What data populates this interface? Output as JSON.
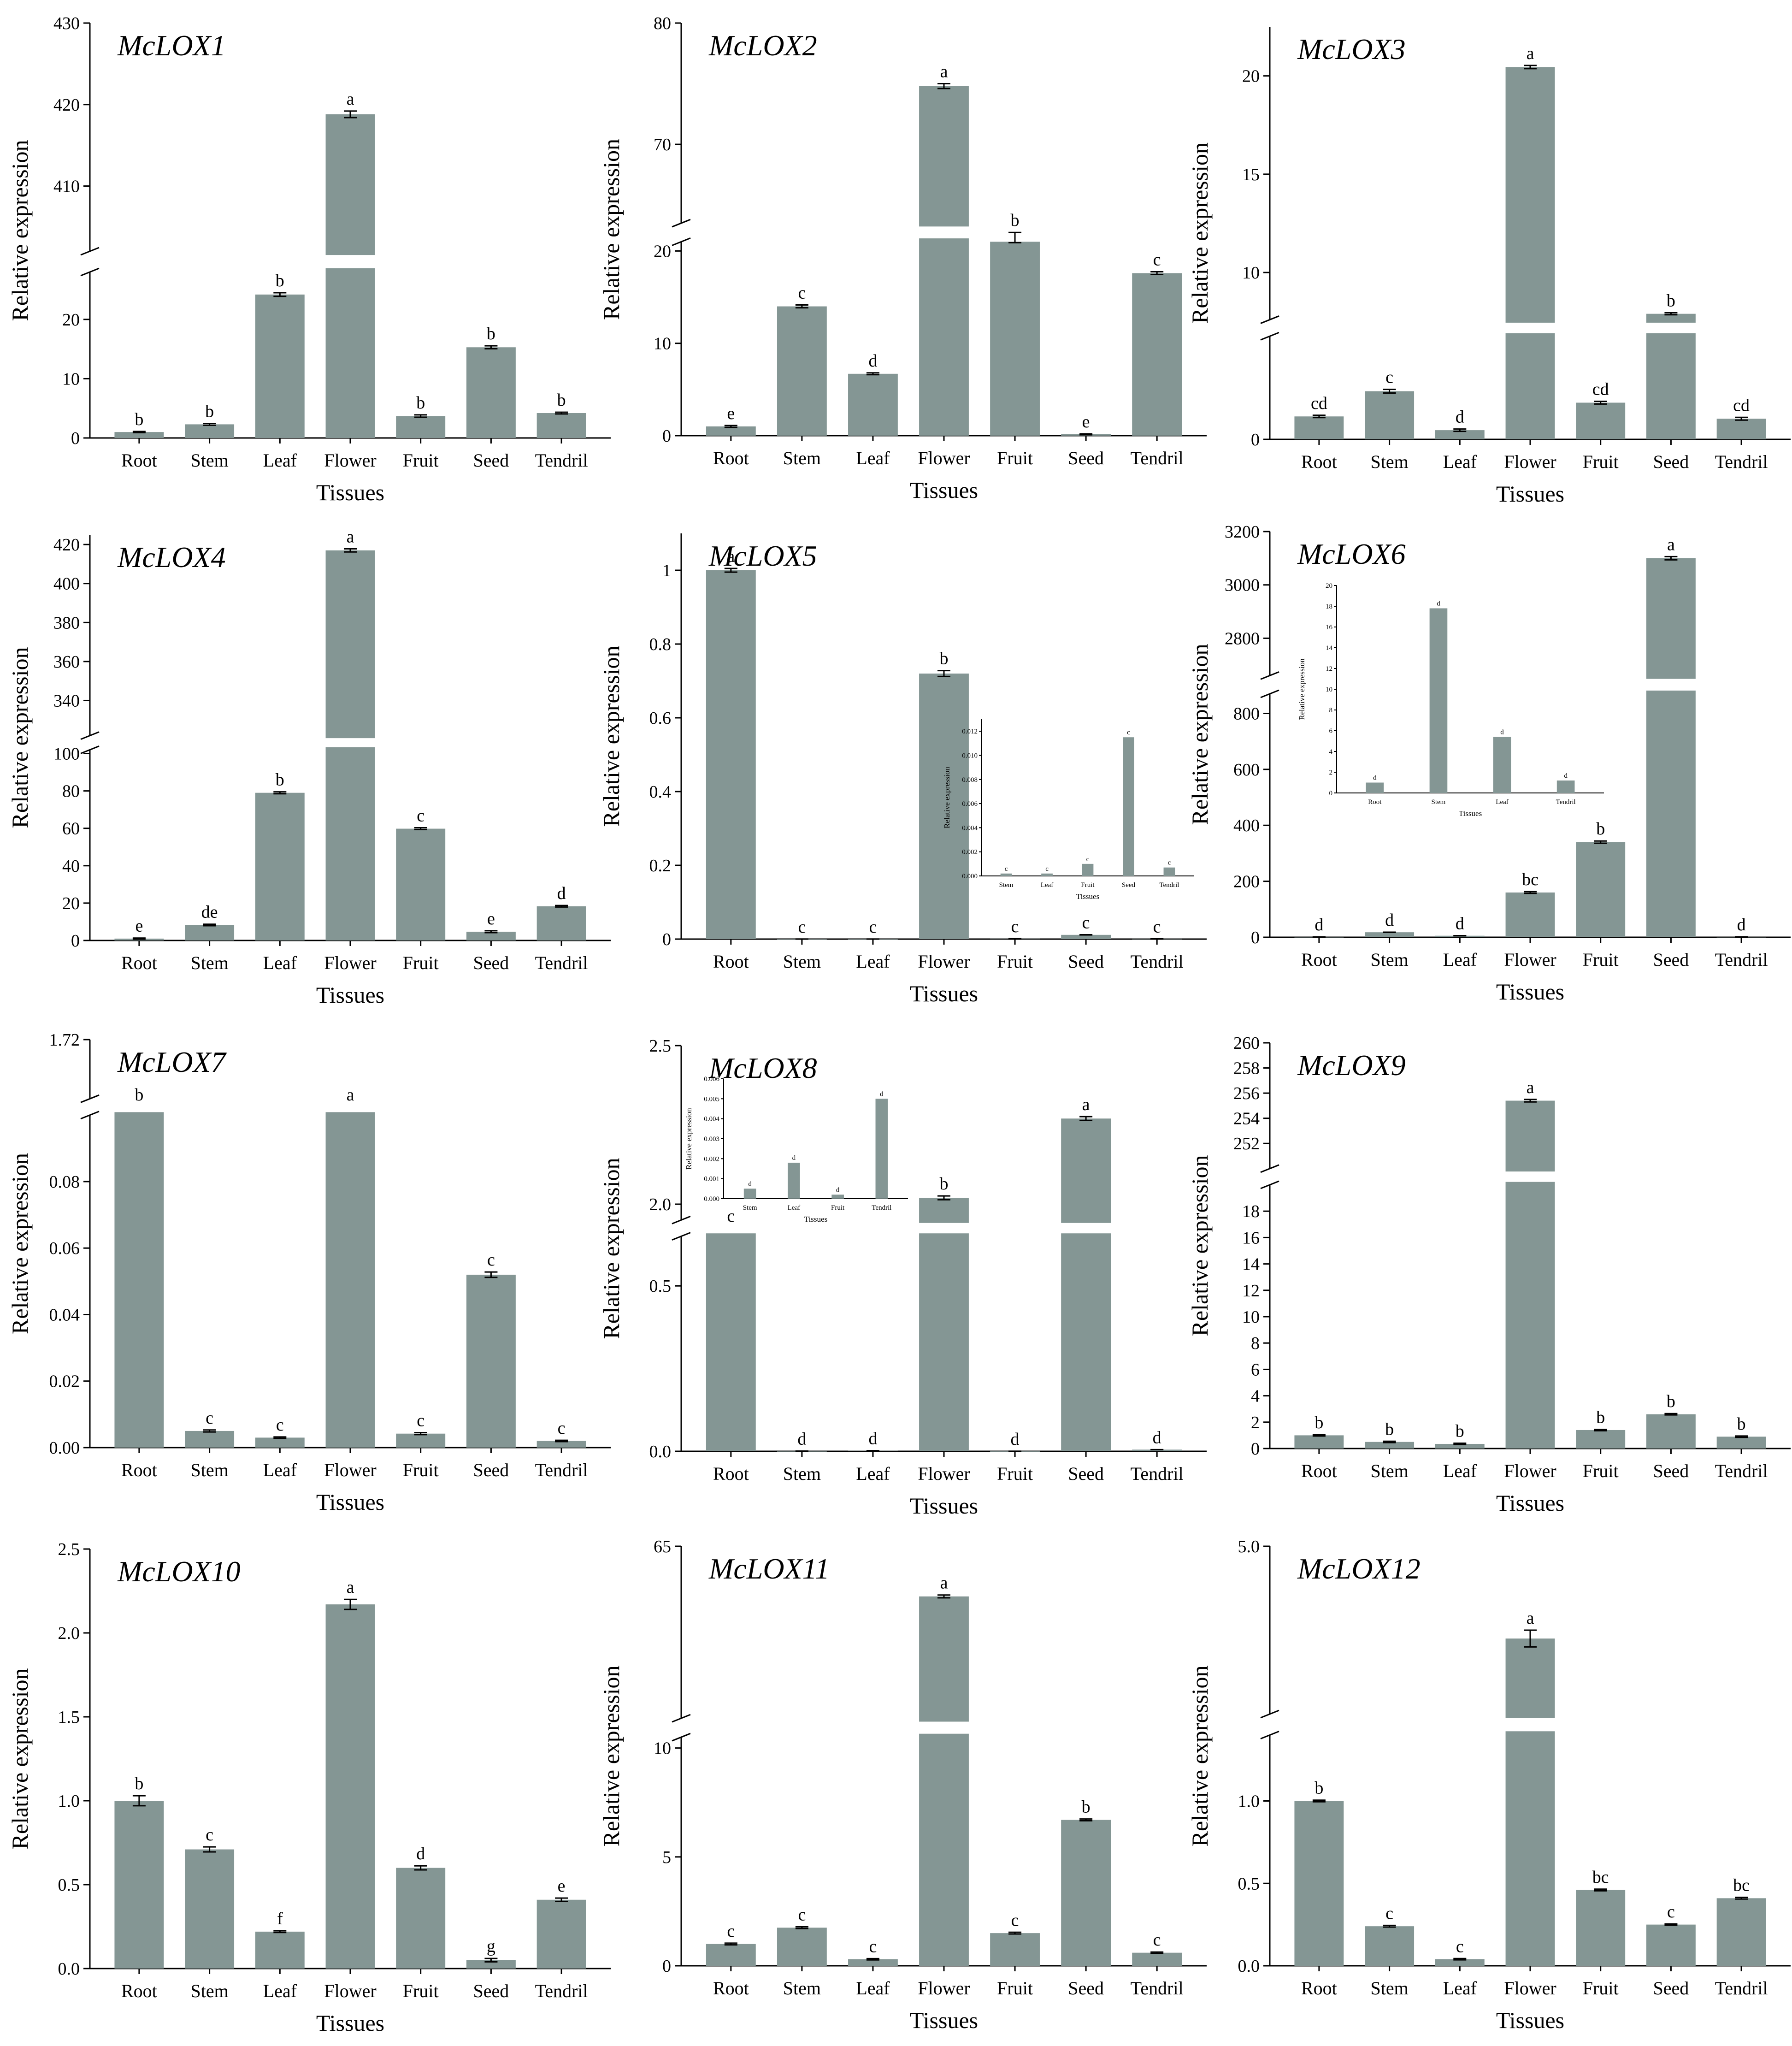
{
  "figure": {
    "bar_color": "#849694",
    "axis_color": "#000000"
  },
  "chart_data": [
    {
      "type": "bar",
      "title": "McLOX1",
      "categories": [
        "Root",
        "Stem",
        "Leaf",
        "Flower",
        "Fruit",
        "Seed",
        "Tendril"
      ],
      "values": [
        1.0,
        2.3,
        24.2,
        418.8,
        3.7,
        15.3,
        4.2
      ],
      "errors": [
        0.1,
        0.15,
        0.3,
        0.4,
        0.2,
        0.25,
        0.15
      ],
      "letters": [
        "b",
        "b",
        "b",
        "a",
        "b",
        "b",
        "b"
      ],
      "xlabel": "Tissues",
      "ylabel": "Relative expression",
      "break_ranges": [
        [
          0,
          28
        ],
        [
          402,
          430
        ]
      ],
      "break_ticks": [
        [
          0,
          10,
          20
        ],
        [
          410,
          420,
          430
        ]
      ]
    },
    {
      "type": "bar",
      "title": "McLOX2",
      "categories": [
        "Root",
        "Stem",
        "Leaf",
        "Flower",
        "Fruit",
        "Seed",
        "Tendril"
      ],
      "values": [
        1.0,
        14.0,
        6.7,
        74.8,
        21.0,
        0.15,
        17.6
      ],
      "errors": [
        0.1,
        0.15,
        0.1,
        0.2,
        0.1,
        0.05,
        0.15
      ],
      "letters": [
        "e",
        "c",
        "d",
        "a",
        "b",
        "e",
        "c"
      ],
      "xlabel": "Tissues",
      "ylabel": "Relative expression",
      "break_ranges": [
        [
          0,
          21
        ],
        [
          63.5,
          80
        ]
      ],
      "break_ticks": [
        [
          0,
          10,
          20
        ],
        [
          70,
          80
        ]
      ]
    },
    {
      "type": "bar",
      "title": "McLOX3",
      "categories": [
        "Root",
        "Stem",
        "Leaf",
        "Flower",
        "Fruit",
        "Seed",
        "Tendril"
      ],
      "values": [
        1.0,
        2.1,
        0.4,
        20.45,
        1.6,
        7.9,
        0.9
      ],
      "errors": [
        0.05,
        0.08,
        0.05,
        0.08,
        0.06,
        0.05,
        0.06
      ],
      "letters": [
        "cd",
        "c",
        "d",
        "a",
        "cd",
        "b",
        "cd"
      ],
      "xlabel": "Tissues",
      "ylabel": "Relative expression",
      "break_ranges": [
        [
          0,
          4.5
        ],
        [
          7.6,
          22.5
        ]
      ],
      "break_ticks": [
        [
          0
        ],
        [
          10,
          15,
          20
        ]
      ]
    },
    {
      "type": "bar",
      "title": "McLOX4",
      "categories": [
        "Root",
        "Stem",
        "Leaf",
        "Flower",
        "Fruit",
        "Seed",
        "Tendril"
      ],
      "values": [
        1.0,
        8.3,
        79.0,
        417.0,
        59.8,
        4.7,
        18.3
      ],
      "errors": [
        0.3,
        0.4,
        0.5,
        0.8,
        0.5,
        0.5,
        0.4
      ],
      "letters": [
        "e",
        "de",
        "b",
        "a",
        "c",
        "e",
        "d"
      ],
      "xlabel": "Tissues",
      "ylabel": "Relative expression",
      "break_ranges": [
        [
          0,
          102
        ],
        [
          322,
          425
        ]
      ],
      "break_ticks": [
        [
          0,
          20,
          40,
          60,
          80,
          100
        ],
        [
          340,
          360,
          380,
          400,
          420
        ]
      ]
    },
    {
      "type": "bar",
      "title": "McLOX5",
      "categories": [
        "Root",
        "Stem",
        "Leaf",
        "Flower",
        "Fruit",
        "Seed",
        "Tendril"
      ],
      "values": [
        1.0,
        0.0002,
        0.0002,
        0.72,
        0.001,
        0.0115,
        0.0007
      ],
      "errors": [
        0.005,
        3e-05,
        3e-05,
        0.008,
        0.0001,
        0.0003,
        0.0001
      ],
      "letters": [
        "a",
        "c",
        "c",
        "b",
        "c",
        "c",
        "c"
      ],
      "xlabel": "Tissues",
      "ylabel": "Relative expression",
      "ylim": [
        0,
        1.1
      ],
      "yticks": [
        0.0,
        0.2,
        0.4,
        0.6,
        0.8,
        1.0
      ],
      "inset": {
        "categories": [
          "Stem",
          "Leaf",
          "Fruit",
          "Seed",
          "Tendril"
        ],
        "values": [
          0.0002,
          0.0002,
          0.001,
          0.0115,
          0.0007
        ],
        "letters": [
          "c",
          "c",
          "c",
          "c",
          "c"
        ],
        "ylim": [
          0,
          0.013
        ],
        "yticks": [
          "0.000",
          "0.002",
          "0.004",
          "0.006",
          "0.008",
          "0.010",
          "0.012"
        ],
        "ytick_values": [
          0,
          0.002,
          0.004,
          0.006,
          0.008,
          0.01,
          0.012
        ],
        "xlabel": "Tissues",
        "ylabel": "Relative expression"
      }
    },
    {
      "type": "bar",
      "title": "McLOX6",
      "categories": [
        "Root",
        "Stem",
        "Leaf",
        "Flower",
        "Fruit",
        "Seed",
        "Tendril"
      ],
      "values": [
        1.0,
        17.8,
        5.4,
        160.0,
        340.0,
        3100.0,
        1.2
      ],
      "errors": [
        0.3,
        0.4,
        0.3,
        3,
        4,
        6,
        0.2
      ],
      "letters": [
        "d",
        "d",
        "d",
        "bc",
        "b",
        "a",
        "d"
      ],
      "xlabel": "Tissues",
      "ylabel": "Relative expression",
      "break_ranges": [
        [
          0,
          870
        ],
        [
          2660,
          3200
        ]
      ],
      "break_ticks": [
        [
          0,
          200,
          400,
          600,
          800
        ],
        [
          2800,
          3000,
          3200
        ]
      ],
      "inset": {
        "categories": [
          "Root",
          "Stem",
          "Leaf",
          "Tendril"
        ],
        "values": [
          1.0,
          17.8,
          5.4,
          1.2
        ],
        "letters": [
          "d",
          "d",
          "d",
          "d"
        ],
        "ylim": [
          0,
          20
        ],
        "yticks": [
          "0",
          "2",
          "4",
          "6",
          "8",
          "10",
          "12",
          "14",
          "16",
          "18",
          "20"
        ],
        "ytick_values": [
          0,
          2,
          4,
          6,
          8,
          10,
          12,
          14,
          16,
          18,
          20
        ],
        "xlabel": "Tissues",
        "ylabel": "Relative expression"
      }
    },
    {
      "type": "bar",
      "title": "McLOX7",
      "categories": [
        "Root",
        "Stem",
        "Leaf",
        "Flower",
        "Fruit",
        "Seed",
        "Tendril"
      ],
      "values": [
        1.0,
        0.005,
        0.003,
        0.98,
        0.0042,
        0.052,
        0.002
      ],
      "errors": [
        0.0,
        0.0003,
        0.0002,
        0.0,
        0.0003,
        0.0008,
        0.0002
      ],
      "letters": [
        "b",
        "c",
        "c",
        "a",
        "c",
        "c",
        "c"
      ],
      "xlabel": "Tissues",
      "ylabel": "Relative expression",
      "break_ranges": [
        [
          0,
          0.1
        ],
        [
          1.66,
          1.72
        ]
      ],
      "break_ticks": [
        [
          0.0,
          0.02,
          0.04,
          0.06,
          0.08
        ],
        [
          1.72
        ]
      ],
      "break_tick_labels": [
        [
          "0.00",
          "0.02",
          "0.04",
          "0.06",
          "0.08"
        ],
        [
          "1.72"
        ]
      ]
    },
    {
      "type": "bar",
      "title": "McLOX8",
      "categories": [
        "Root",
        "Stem",
        "Leaf",
        "Flower",
        "Fruit",
        "Seed",
        "Tendril"
      ],
      "values": [
        1.0,
        0.0005,
        0.0018,
        2.02,
        0.0002,
        2.27,
        0.005
      ],
      "errors": [
        0.0,
        5e-05,
        8e-05,
        0.006,
        3e-05,
        0.006,
        0.0001
      ],
      "letters": [
        "c",
        "d",
        "d",
        "b",
        "d",
        "a",
        "d"
      ],
      "xlabel": "Tissues",
      "ylabel": "Relative expression",
      "break_ranges": [
        [
          0,
          0.65
        ],
        [
          1.95,
          2.5
        ]
      ],
      "break_ticks": [
        [
          0.0,
          0.5
        ],
        [
          2.0,
          2.5
        ]
      ],
      "break_tick_labels": [
        [
          "0.0",
          "0.5"
        ],
        [
          "2.0",
          "2.5"
        ]
      ],
      "inset": {
        "categories": [
          "Stem",
          "Leaf",
          "Fruit",
          "Tendril"
        ],
        "values": [
          0.0005,
          0.0018,
          0.0002,
          0.005
        ],
        "letters": [
          "d",
          "d",
          "d",
          "d"
        ],
        "ylim": [
          0,
          0.006
        ],
        "yticks": [
          "0.000",
          "0.001",
          "0.002",
          "0.003",
          "0.004",
          "0.005",
          "0.006"
        ],
        "ytick_values": [
          0,
          0.001,
          0.002,
          0.003,
          0.004,
          0.005,
          0.006
        ],
        "xlabel": "Tissues",
        "ylabel": "Relative expression"
      }
    },
    {
      "type": "bar",
      "title": "McLOX9",
      "categories": [
        "Root",
        "Stem",
        "Leaf",
        "Flower",
        "Fruit",
        "Seed",
        "Tendril"
      ],
      "values": [
        1.0,
        0.5,
        0.35,
        255.4,
        1.4,
        2.6,
        0.9
      ],
      "errors": [
        0.05,
        0.05,
        0.05,
        0.1,
        0.05,
        0.05,
        0.05
      ],
      "letters": [
        "b",
        "b",
        "b",
        "a",
        "b",
        "b",
        "b"
      ],
      "xlabel": "Tissues",
      "ylabel": "Relative expression",
      "break_ranges": [
        [
          0,
          20
        ],
        [
          250,
          260
        ]
      ],
      "break_ticks": [
        [
          0,
          2,
          4,
          6,
          8,
          10,
          12,
          14,
          16,
          18
        ],
        [
          252,
          254,
          256,
          258,
          260
        ]
      ]
    },
    {
      "type": "bar",
      "title": "McLOX10",
      "categories": [
        "Root",
        "Stem",
        "Leaf",
        "Flower",
        "Fruit",
        "Seed",
        "Tendril"
      ],
      "values": [
        1.0,
        0.71,
        0.22,
        2.17,
        0.6,
        0.05,
        0.41
      ],
      "errors": [
        0.03,
        0.015,
        0.005,
        0.03,
        0.012,
        0.01,
        0.01
      ],
      "letters": [
        "b",
        "c",
        "f",
        "a",
        "d",
        "g",
        "e"
      ],
      "xlabel": "Tissues",
      "ylabel": "Relative expression",
      "ylim": [
        0,
        2.5
      ],
      "yticks": [
        0.0,
        0.5,
        1.0,
        1.5,
        2.0,
        2.5
      ],
      "ytick_labels": [
        "0.0",
        "0.5",
        "1.0",
        "1.5",
        "2.0",
        "2.5"
      ]
    },
    {
      "type": "bar",
      "title": "McLOX11",
      "categories": [
        "Root",
        "Stem",
        "Leaf",
        "Flower",
        "Fruit",
        "Seed",
        "Tendril"
      ],
      "values": [
        1.0,
        1.75,
        0.3,
        61.5,
        1.5,
        6.7,
        0.6
      ],
      "errors": [
        0.04,
        0.04,
        0.03,
        0.1,
        0.04,
        0.04,
        0.03
      ],
      "letters": [
        "c",
        "c",
        "c",
        "a",
        "c",
        "b",
        "c"
      ],
      "xlabel": "Tissues",
      "ylabel": "Relative expression",
      "break_ranges": [
        [
          0,
          10.5
        ],
        [
          53,
          65
        ]
      ],
      "break_ticks": [
        [
          0,
          5,
          10
        ],
        [
          65
        ]
      ]
    },
    {
      "type": "bar",
      "title": "McLOX12",
      "categories": [
        "Root",
        "Stem",
        "Leaf",
        "Flower",
        "Fruit",
        "Seed",
        "Tendril"
      ],
      "values": [
        1.0,
        0.24,
        0.04,
        3.9,
        0.46,
        0.25,
        0.41
      ],
      "errors": [
        0.005,
        0.005,
        0.004,
        0.1,
        0.005,
        0.004,
        0.005
      ],
      "letters": [
        "b",
        "c",
        "c",
        "a",
        "bc",
        "c",
        "bc"
      ],
      "xlabel": "Tissues",
      "ylabel": "Relative expression",
      "break_ranges": [
        [
          0,
          1.4
        ],
        [
          3.0,
          5.0
        ]
      ],
      "break_ticks": [
        [
          0.0,
          0.5,
          1.0
        ],
        [
          5.0
        ]
      ],
      "break_tick_labels": [
        [
          "0.0",
          "0.5",
          "1.0"
        ],
        [
          "5.0"
        ]
      ]
    }
  ]
}
